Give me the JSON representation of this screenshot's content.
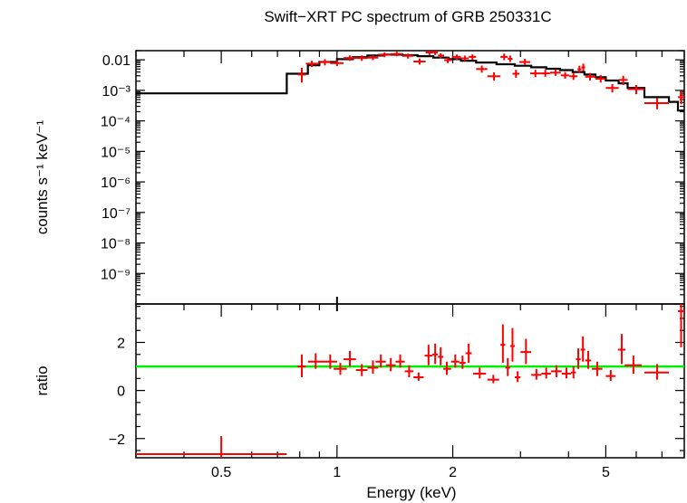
{
  "chart_data": [
    {
      "type": "scatter",
      "panel": "spectrum",
      "title": "Swift−XRT PC spectrum of GRB 250331C",
      "xlabel": "",
      "ylabel": "counts s⁻¹ keV⁻¹",
      "x_scale": "log",
      "y_scale": "log",
      "xlim": [
        0.3,
        8.0
      ],
      "ylim": [
        1e-10,
        0.02
      ],
      "y_ticks": [
        {
          "value": 0.01,
          "label": "0.01"
        },
        {
          "value": 0.001,
          "label": "10⁻³"
        },
        {
          "value": 0.0001,
          "label": "10⁻⁴"
        },
        {
          "value": 1e-05,
          "label": "10⁻⁵"
        },
        {
          "value": 1e-06,
          "label": "10⁻⁶"
        },
        {
          "value": 1e-07,
          "label": "10⁻⁷"
        },
        {
          "value": 1e-08,
          "label": "10⁻⁸"
        },
        {
          "value": 1e-09,
          "label": "10⁻⁹"
        }
      ],
      "series": [
        {
          "kind": "data",
          "color": "#ff0000",
          "points": [
            {
              "x": 0.81,
              "xlo": 0.79,
              "xhi": 0.83,
              "y": 0.0033,
              "ylo": 0.0018,
              "yhi": 0.0055
            },
            {
              "x": 0.86,
              "xlo": 0.83,
              "xhi": 0.9,
              "y": 0.0075,
              "ylo": 0.0058,
              "yhi": 0.0093
            },
            {
              "x": 0.93,
              "xlo": 0.9,
              "xhi": 0.96,
              "y": 0.0085,
              "ylo": 0.0066,
              "yhi": 0.0105
            },
            {
              "x": 1.0,
              "xlo": 0.96,
              "xhi": 1.04,
              "y": 0.0078,
              "ylo": 0.0062,
              "yhi": 0.0098
            },
            {
              "x": 1.08,
              "xlo": 1.04,
              "xhi": 1.12,
              "y": 0.0115,
              "ylo": 0.0093,
              "yhi": 0.014
            },
            {
              "x": 1.16,
              "xlo": 1.12,
              "xhi": 1.2,
              "y": 0.0115,
              "ylo": 0.0093,
              "yhi": 0.014
            },
            {
              "x": 1.24,
              "xlo": 1.2,
              "xhi": 1.28,
              "y": 0.0118,
              "ylo": 0.0098,
              "yhi": 0.014
            },
            {
              "x": 1.33,
              "xlo": 1.28,
              "xhi": 1.38,
              "y": 0.0148,
              "ylo": 0.0122,
              "yhi": 0.0175
            },
            {
              "x": 1.43,
              "xlo": 1.38,
              "xhi": 1.48,
              "y": 0.0155,
              "ylo": 0.013,
              "yhi": 0.0185
            },
            {
              "x": 1.53,
              "xlo": 1.48,
              "xhi": 1.58,
              "y": 0.0135,
              "ylo": 0.011,
              "yhi": 0.016
            },
            {
              "x": 1.64,
              "xlo": 1.58,
              "xhi": 1.7,
              "y": 0.0088,
              "ylo": 0.007,
              "yhi": 0.011
            },
            {
              "x": 1.74,
              "xlo": 1.7,
              "xhi": 1.78,
              "y": 0.0175,
              "ylo": 0.0143,
              "yhi": 0.021
            },
            {
              "x": 1.8,
              "xlo": 1.78,
              "xhi": 1.83,
              "y": 0.0175,
              "ylo": 0.0143,
              "yhi": 0.021
            },
            {
              "x": 1.86,
              "xlo": 1.83,
              "xhi": 1.9,
              "y": 0.0138,
              "ylo": 0.0112,
              "yhi": 0.0165
            },
            {
              "x": 1.94,
              "xlo": 1.9,
              "xhi": 1.99,
              "y": 0.0098,
              "ylo": 0.0078,
              "yhi": 0.012
            },
            {
              "x": 2.05,
              "xlo": 1.99,
              "xhi": 2.1,
              "y": 0.0125,
              "ylo": 0.01,
              "yhi": 0.015
            },
            {
              "x": 2.15,
              "xlo": 2.1,
              "xhi": 2.2,
              "y": 0.0112,
              "ylo": 0.0092,
              "yhi": 0.0138
            },
            {
              "x": 2.25,
              "xlo": 2.2,
              "xhi": 2.3,
              "y": 0.0125,
              "ylo": 0.01,
              "yhi": 0.015
            },
            {
              "x": 2.38,
              "xlo": 2.3,
              "xhi": 2.46,
              "y": 0.005,
              "ylo": 0.0038,
              "yhi": 0.0065
            },
            {
              "x": 2.56,
              "xlo": 2.46,
              "xhi": 2.66,
              "y": 0.0029,
              "ylo": 0.0021,
              "yhi": 0.0039
            },
            {
              "x": 2.72,
              "xlo": 2.66,
              "xhi": 2.78,
              "y": 0.0125,
              "ylo": 0.0098,
              "yhi": 0.016
            },
            {
              "x": 2.82,
              "xlo": 2.78,
              "xhi": 2.86,
              "y": 0.0108,
              "ylo": 0.0085,
              "yhi": 0.0138
            },
            {
              "x": 2.92,
              "xlo": 2.86,
              "xhi": 2.98,
              "y": 0.0035,
              "ylo": 0.0026,
              "yhi": 0.0047
            },
            {
              "x": 3.08,
              "xlo": 2.98,
              "xhi": 3.18,
              "y": 0.0085,
              "ylo": 0.0068,
              "yhi": 0.0108
            },
            {
              "x": 3.28,
              "xlo": 3.18,
              "xhi": 3.38,
              "y": 0.0036,
              "ylo": 0.0027,
              "yhi": 0.0047
            },
            {
              "x": 3.48,
              "xlo": 3.38,
              "xhi": 3.58,
              "y": 0.0036,
              "ylo": 0.0028,
              "yhi": 0.0047
            },
            {
              "x": 3.7,
              "xlo": 3.58,
              "xhi": 3.82,
              "y": 0.0038,
              "ylo": 0.003,
              "yhi": 0.0048
            },
            {
              "x": 3.92,
              "xlo": 3.82,
              "xhi": 4.02,
              "y": 0.0031,
              "ylo": 0.0024,
              "yhi": 0.004
            },
            {
              "x": 4.12,
              "xlo": 4.02,
              "xhi": 4.22,
              "y": 0.0029,
              "ylo": 0.0022,
              "yhi": 0.0038
            },
            {
              "x": 4.27,
              "xlo": 4.22,
              "xhi": 4.32,
              "y": 0.0049,
              "ylo": 0.0037,
              "yhi": 0.0064
            },
            {
              "x": 4.37,
              "xlo": 4.32,
              "xhi": 4.42,
              "y": 0.0057,
              "ylo": 0.0043,
              "yhi": 0.0075
            },
            {
              "x": 4.55,
              "xlo": 4.42,
              "xhi": 4.7,
              "y": 0.0028,
              "ylo": 0.0021,
              "yhi": 0.0037
            },
            {
              "x": 4.85,
              "xlo": 4.7,
              "xhi": 5.0,
              "y": 0.0024,
              "ylo": 0.0018,
              "yhi": 0.0032
            },
            {
              "x": 5.2,
              "xlo": 5.0,
              "xhi": 5.4,
              "y": 0.0012,
              "ylo": 0.00085,
              "yhi": 0.0016
            },
            {
              "x": 5.55,
              "xlo": 5.4,
              "xhi": 5.7,
              "y": 0.0022,
              "ylo": 0.0015,
              "yhi": 0.003
            },
            {
              "x": 6.0,
              "xlo": 5.7,
              "xhi": 6.3,
              "y": 0.0011,
              "ylo": 0.00075,
              "yhi": 0.0015
            },
            {
              "x": 6.8,
              "xlo": 6.3,
              "xhi": 7.3,
              "y": 0.00038,
              "ylo": 0.00024,
              "yhi": 0.00055
            },
            {
              "x": 7.85,
              "xlo": 7.7,
              "xhi": 8.0,
              "y": 0.0006,
              "ylo": 0.00035,
              "yhi": 0.00095
            }
          ]
        },
        {
          "kind": "model",
          "color": "#000000",
          "steps": [
            {
              "x0": 0.3,
              "x1": 0.74,
              "y": 0.0008
            },
            {
              "x0": 0.74,
              "x1": 0.84,
              "y": 0.0035
            },
            {
              "x0": 0.84,
              "x1": 0.9,
              "y": 0.0066
            },
            {
              "x0": 0.9,
              "x1": 1.0,
              "y": 0.0085
            },
            {
              "x0": 1.0,
              "x1": 1.1,
              "y": 0.0105
            },
            {
              "x0": 1.1,
              "x1": 1.2,
              "y": 0.0122
            },
            {
              "x0": 1.2,
              "x1": 1.32,
              "y": 0.0138
            },
            {
              "x0": 1.32,
              "x1": 1.48,
              "y": 0.0148
            },
            {
              "x0": 1.48,
              "x1": 1.62,
              "y": 0.0142
            },
            {
              "x0": 1.62,
              "x1": 1.78,
              "y": 0.0132
            },
            {
              "x0": 1.78,
              "x1": 1.95,
              "y": 0.0118
            },
            {
              "x0": 1.95,
              "x1": 2.1,
              "y": 0.0105
            },
            {
              "x0": 2.1,
              "x1": 2.3,
              "y": 0.0093
            },
            {
              "x0": 2.3,
              "x1": 2.6,
              "y": 0.0082
            },
            {
              "x0": 2.6,
              "x1": 2.9,
              "y": 0.0072
            },
            {
              "x0": 2.9,
              "x1": 3.2,
              "y": 0.0064
            },
            {
              "x0": 3.2,
              "x1": 3.5,
              "y": 0.0057
            },
            {
              "x0": 3.5,
              "x1": 3.8,
              "y": 0.0051
            },
            {
              "x0": 3.8,
              "x1": 4.1,
              "y": 0.0046
            },
            {
              "x0": 4.1,
              "x1": 4.4,
              "y": 0.004
            },
            {
              "x0": 4.4,
              "x1": 4.7,
              "y": 0.0033
            },
            {
              "x0": 4.7,
              "x1": 5.0,
              "y": 0.0027
            },
            {
              "x0": 5.0,
              "x1": 5.4,
              "y": 0.0021
            },
            {
              "x0": 5.4,
              "x1": 5.7,
              "y": 0.0017
            },
            {
              "x0": 5.7,
              "x1": 6.3,
              "y": 0.0012
            },
            {
              "x0": 6.3,
              "x1": 7.3,
              "y": 0.0006
            },
            {
              "x0": 7.3,
              "x1": 7.7,
              "y": 0.00042
            },
            {
              "x0": 7.7,
              "x1": 8.0,
              "y": 0.00022
            }
          ]
        }
      ]
    },
    {
      "type": "scatter",
      "panel": "ratio",
      "xlabel": "Energy (keV)",
      "ylabel": "ratio",
      "x_scale": "log",
      "y_scale": "linear",
      "xlim": [
        0.3,
        8.0
      ],
      "ylim": [
        -2.8,
        3.6
      ],
      "x_ticks": [
        {
          "value": 0.5,
          "label": "0.5"
        },
        {
          "value": 1,
          "label": "1"
        },
        {
          "value": 2,
          "label": "2"
        },
        {
          "value": 5,
          "label": "5"
        }
      ],
      "y_ticks": [
        {
          "value": 2,
          "label": "2"
        },
        {
          "value": 0,
          "label": "0"
        },
        {
          "value": -2,
          "label": "−2"
        }
      ],
      "reference_line": {
        "y": 1,
        "color": "#00ee00"
      },
      "series": [
        {
          "kind": "ratio",
          "color": "#ff0000",
          "points": [
            {
              "x": 0.5,
              "xlo": 0.3,
              "xhi": 0.74,
              "y": -2.65,
              "ylo": -2.8,
              "yhi": -1.9
            },
            {
              "x": 0.81,
              "xlo": 0.79,
              "xhi": 0.83,
              "y": 1.0,
              "ylo": 0.55,
              "yhi": 1.5
            },
            {
              "x": 0.88,
              "xlo": 0.84,
              "xhi": 0.92,
              "y": 1.2,
              "ylo": 0.9,
              "yhi": 1.55
            },
            {
              "x": 0.96,
              "xlo": 0.92,
              "xhi": 1.0,
              "y": 1.2,
              "ylo": 0.9,
              "yhi": 1.5
            },
            {
              "x": 1.02,
              "xlo": 0.98,
              "xhi": 1.06,
              "y": 0.9,
              "ylo": 0.65,
              "yhi": 1.15
            },
            {
              "x": 1.08,
              "xlo": 1.04,
              "xhi": 1.12,
              "y": 1.3,
              "ylo": 1.0,
              "yhi": 1.65
            },
            {
              "x": 1.16,
              "xlo": 1.12,
              "xhi": 1.2,
              "y": 0.85,
              "ylo": 0.6,
              "yhi": 1.1
            },
            {
              "x": 1.24,
              "xlo": 1.2,
              "xhi": 1.28,
              "y": 0.95,
              "ylo": 0.7,
              "yhi": 1.25
            },
            {
              "x": 1.3,
              "xlo": 1.26,
              "xhi": 1.34,
              "y": 1.2,
              "ylo": 0.95,
              "yhi": 1.5
            },
            {
              "x": 1.38,
              "xlo": 1.34,
              "xhi": 1.42,
              "y": 1.05,
              "ylo": 0.8,
              "yhi": 1.35
            },
            {
              "x": 1.46,
              "xlo": 1.42,
              "xhi": 1.5,
              "y": 1.2,
              "ylo": 0.95,
              "yhi": 1.5
            },
            {
              "x": 1.54,
              "xlo": 1.5,
              "xhi": 1.58,
              "y": 0.8,
              "ylo": 0.55,
              "yhi": 1.05
            },
            {
              "x": 1.63,
              "xlo": 1.58,
              "xhi": 1.68,
              "y": 0.55,
              "ylo": 0.4,
              "yhi": 0.75
            },
            {
              "x": 1.73,
              "xlo": 1.69,
              "xhi": 1.77,
              "y": 1.45,
              "ylo": 1.05,
              "yhi": 1.9
            },
            {
              "x": 1.8,
              "xlo": 1.77,
              "xhi": 1.83,
              "y": 1.5,
              "ylo": 1.1,
              "yhi": 1.95
            },
            {
              "x": 1.86,
              "xlo": 1.83,
              "xhi": 1.89,
              "y": 1.4,
              "ylo": 1.05,
              "yhi": 1.8
            },
            {
              "x": 1.93,
              "xlo": 1.89,
              "xhi": 1.98,
              "y": 0.9,
              "ylo": 0.65,
              "yhi": 1.2
            },
            {
              "x": 2.03,
              "xlo": 1.98,
              "xhi": 2.08,
              "y": 1.2,
              "ylo": 0.95,
              "yhi": 1.5
            },
            {
              "x": 2.12,
              "xlo": 2.08,
              "xhi": 2.16,
              "y": 1.15,
              "ylo": 0.9,
              "yhi": 1.45
            },
            {
              "x": 2.2,
              "xlo": 2.16,
              "xhi": 2.24,
              "y": 1.55,
              "ylo": 1.15,
              "yhi": 1.95
            },
            {
              "x": 2.35,
              "xlo": 2.26,
              "xhi": 2.44,
              "y": 0.7,
              "ylo": 0.5,
              "yhi": 0.95
            },
            {
              "x": 2.55,
              "xlo": 2.46,
              "xhi": 2.64,
              "y": 0.45,
              "ylo": 0.3,
              "yhi": 0.65
            },
            {
              "x": 2.7,
              "xlo": 2.66,
              "xhi": 2.74,
              "y": 1.9,
              "ylo": 1.15,
              "yhi": 2.75
            },
            {
              "x": 2.78,
              "xlo": 2.74,
              "xhi": 2.82,
              "y": 0.95,
              "ylo": 0.6,
              "yhi": 1.35
            },
            {
              "x": 2.86,
              "xlo": 2.82,
              "xhi": 2.9,
              "y": 1.85,
              "ylo": 1.2,
              "yhi": 2.6
            },
            {
              "x": 2.95,
              "xlo": 2.9,
              "xhi": 3.0,
              "y": 0.55,
              "ylo": 0.35,
              "yhi": 0.8
            },
            {
              "x": 3.1,
              "xlo": 3.0,
              "xhi": 3.2,
              "y": 1.6,
              "ylo": 1.1,
              "yhi": 2.15
            },
            {
              "x": 3.3,
              "xlo": 3.2,
              "xhi": 3.4,
              "y": 0.65,
              "ylo": 0.45,
              "yhi": 0.9
            },
            {
              "x": 3.5,
              "xlo": 3.4,
              "xhi": 3.6,
              "y": 0.7,
              "ylo": 0.5,
              "yhi": 0.95
            },
            {
              "x": 3.72,
              "xlo": 3.6,
              "xhi": 3.84,
              "y": 0.8,
              "ylo": 0.55,
              "yhi": 1.05
            },
            {
              "x": 3.95,
              "xlo": 3.84,
              "xhi": 4.06,
              "y": 0.7,
              "ylo": 0.5,
              "yhi": 0.95
            },
            {
              "x": 4.12,
              "xlo": 4.06,
              "xhi": 4.18,
              "y": 0.75,
              "ylo": 0.5,
              "yhi": 1.0
            },
            {
              "x": 4.24,
              "xlo": 4.18,
              "xhi": 4.3,
              "y": 1.3,
              "ylo": 0.9,
              "yhi": 1.75
            },
            {
              "x": 4.36,
              "xlo": 4.3,
              "xhi": 4.42,
              "y": 1.7,
              "ylo": 1.2,
              "yhi": 2.25
            },
            {
              "x": 4.5,
              "xlo": 4.42,
              "xhi": 4.58,
              "y": 1.25,
              "ylo": 0.9,
              "yhi": 1.65
            },
            {
              "x": 4.75,
              "xlo": 4.6,
              "xhi": 4.9,
              "y": 0.9,
              "ylo": 0.6,
              "yhi": 1.2
            },
            {
              "x": 5.15,
              "xlo": 5.0,
              "xhi": 5.3,
              "y": 0.6,
              "ylo": 0.4,
              "yhi": 0.85
            },
            {
              "x": 5.5,
              "xlo": 5.38,
              "xhi": 5.62,
              "y": 1.7,
              "ylo": 1.1,
              "yhi": 2.35
            },
            {
              "x": 5.9,
              "xlo": 5.6,
              "xhi": 6.2,
              "y": 1.05,
              "ylo": 0.7,
              "yhi": 1.45
            },
            {
              "x": 6.8,
              "xlo": 6.3,
              "xhi": 7.3,
              "y": 0.75,
              "ylo": 0.45,
              "yhi": 1.1
            },
            {
              "x": 7.85,
              "xlo": 7.7,
              "xhi": 8.0,
              "y": 3.3,
              "ylo": 1.8,
              "yhi": 3.6
            }
          ]
        }
      ]
    }
  ]
}
